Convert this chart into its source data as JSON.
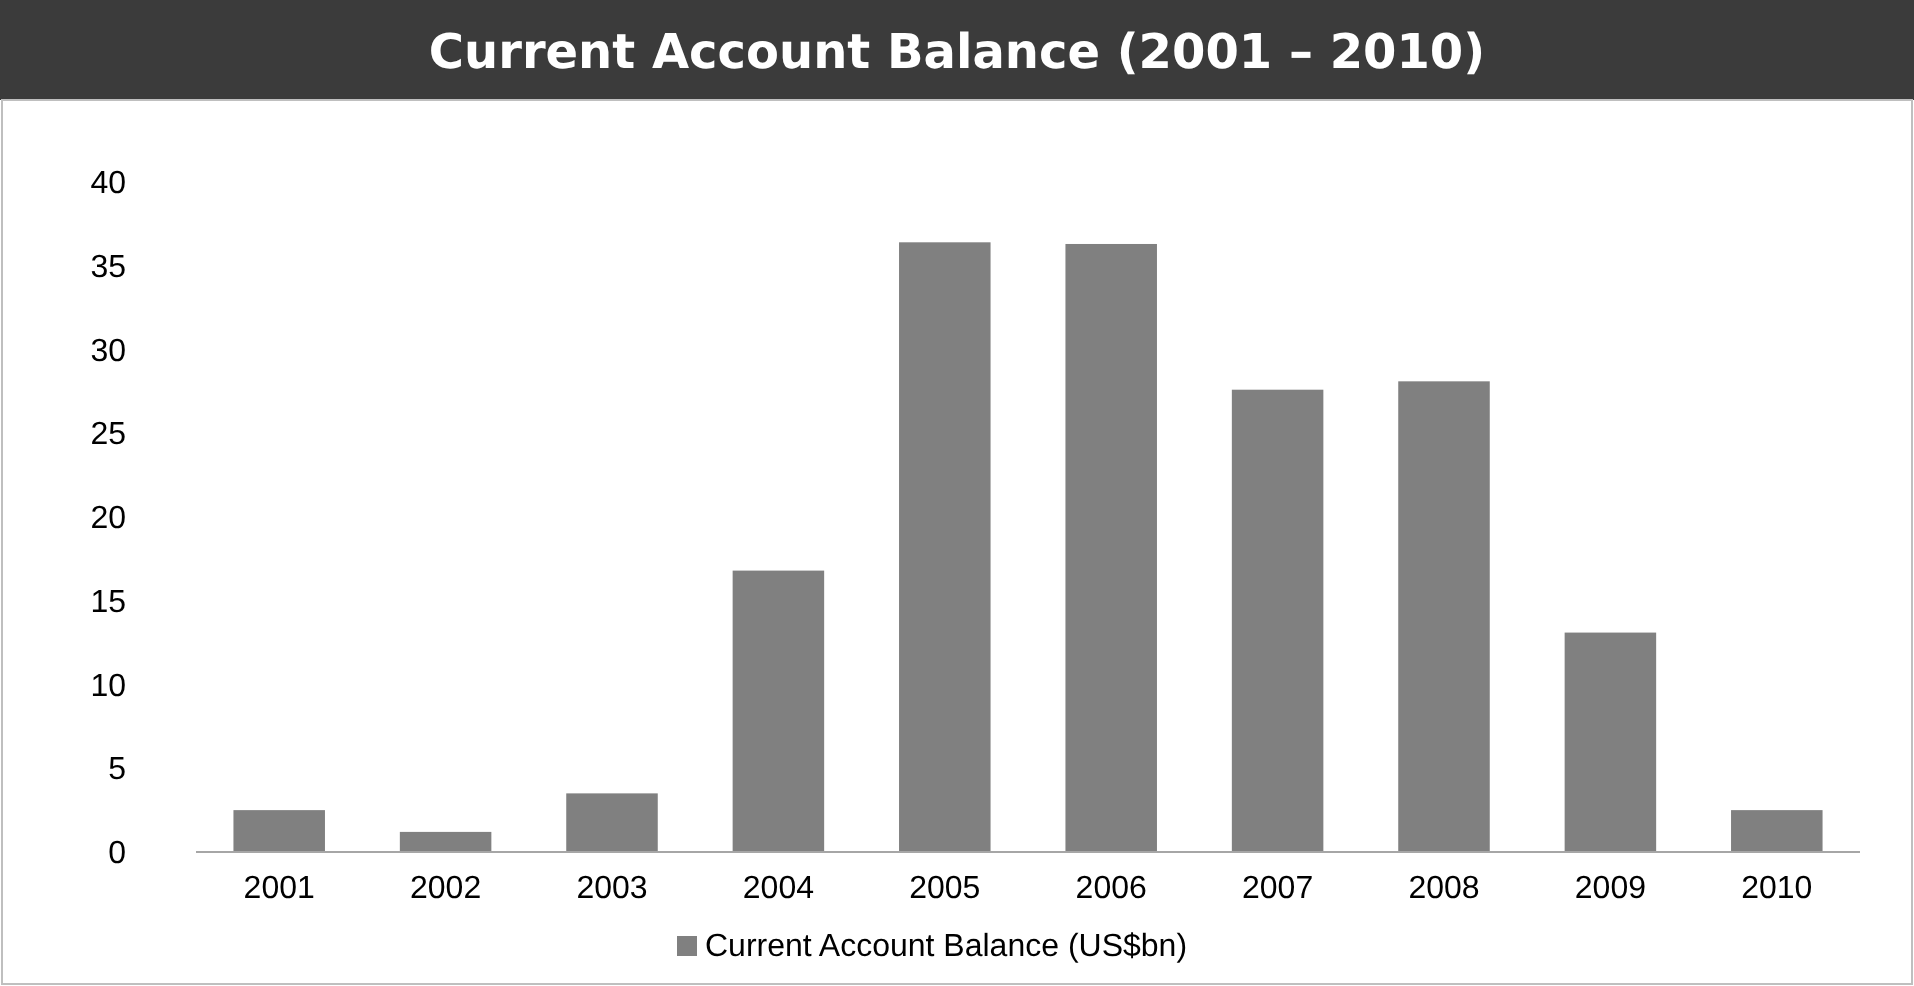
{
  "chart_data": {
    "type": "bar",
    "title": "Current Account Balance (2001 – 2010)",
    "categories": [
      "2001",
      "2002",
      "2003",
      "2004",
      "2005",
      "2006",
      "2007",
      "2008",
      "2009",
      "2010"
    ],
    "series": [
      {
        "name": "Current Account Balance (US$bn)",
        "color": "#808080",
        "values": [
          2.5,
          1.2,
          3.5,
          16.8,
          36.4,
          36.3,
          27.6,
          28.1,
          13.1,
          2.5
        ]
      }
    ],
    "ylim": [
      0,
      40
    ],
    "yticks": [
      0,
      5,
      10,
      15,
      20,
      25,
      30,
      35,
      40
    ],
    "grid": false,
    "legend": "bottom"
  }
}
